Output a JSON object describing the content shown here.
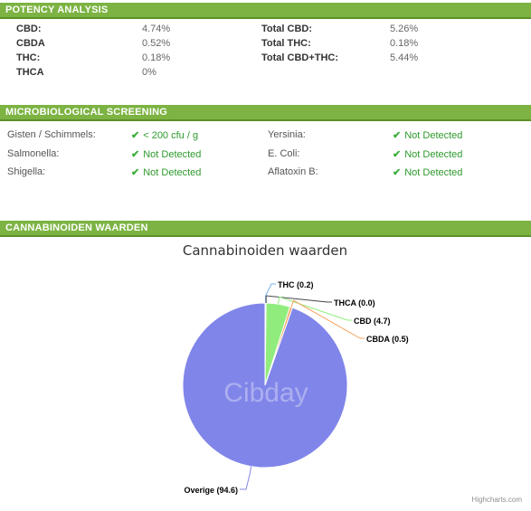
{
  "potency": {
    "header": "POTENCY ANALYSIS",
    "rows": [
      {
        "label": "CBD:",
        "value": "4.74%",
        "label2": "Total CBD:",
        "value2": "5.26%"
      },
      {
        "label": "CBDA",
        "value": "0.52%",
        "label2": "Total THC:",
        "value2": "0.18%"
      },
      {
        "label": "THC:",
        "value": "0.18%",
        "label2": "Total CBD+THC:",
        "value2": "5.44%"
      },
      {
        "label": "THCA",
        "value": "0%",
        "label2": "",
        "value2": ""
      }
    ]
  },
  "micro": {
    "header": "MICROBIOLOGICAL SCREENING",
    "rows": [
      {
        "label": "Gisten / Schimmels:",
        "value": "< 200 cfu / g",
        "label2": "Yersinia:",
        "value2": "Not Detected"
      },
      {
        "label": "Salmonella:",
        "value": "Not Detected",
        "label2": "E. Coli:",
        "value2": "Not Detected"
      },
      {
        "label": "Shigella:",
        "value": "Not Detected",
        "label2": "Aflatoxin B:",
        "value2": "Not Detected"
      }
    ]
  },
  "cannabinoid": {
    "header": "CANNABINOIDEN WAARDEN",
    "watermark": "Cibday",
    "credits": "Highcharts.com"
  },
  "chart_data": {
    "type": "pie",
    "title": "Cannabinoiden waarden",
    "slices": [
      {
        "name": "THC",
        "value": 0.2,
        "label": "THC (0.2)",
        "color": "#7cb5ec"
      },
      {
        "name": "THCA",
        "value": 0.0,
        "label": "THCA (0.0)",
        "color": "#434348"
      },
      {
        "name": "CBD",
        "value": 4.7,
        "label": "CBD (4.7)",
        "color": "#90ed7d"
      },
      {
        "name": "CBDA",
        "value": 0.5,
        "label": "CBDA (0.5)",
        "color": "#f7a35c"
      },
      {
        "name": "Overige",
        "value": 94.6,
        "label": "Overige (94.6)",
        "color": "#8085e9"
      }
    ]
  }
}
